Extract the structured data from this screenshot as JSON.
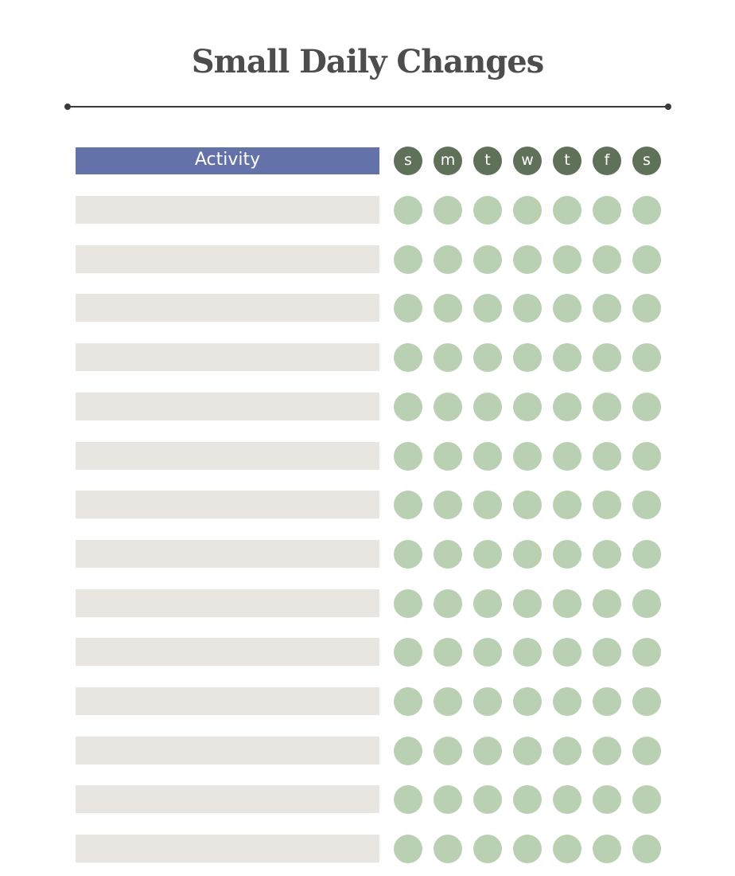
{
  "title": "Small Daily Changes",
  "header": {
    "activity_label": "Activity",
    "days": [
      "s",
      "m",
      "t",
      "w",
      "t",
      "f",
      "s"
    ]
  },
  "rows": [
    {
      "activity": "",
      "checks": [
        false,
        false,
        false,
        false,
        false,
        false,
        false
      ]
    },
    {
      "activity": "",
      "checks": [
        false,
        false,
        false,
        false,
        false,
        false,
        false
      ]
    },
    {
      "activity": "",
      "checks": [
        false,
        false,
        false,
        false,
        false,
        false,
        false
      ]
    },
    {
      "activity": "",
      "checks": [
        false,
        false,
        false,
        false,
        false,
        false,
        false
      ]
    },
    {
      "activity": "",
      "checks": [
        false,
        false,
        false,
        false,
        false,
        false,
        false
      ]
    },
    {
      "activity": "",
      "checks": [
        false,
        false,
        false,
        false,
        false,
        false,
        false
      ]
    },
    {
      "activity": "",
      "checks": [
        false,
        false,
        false,
        false,
        false,
        false,
        false
      ]
    },
    {
      "activity": "",
      "checks": [
        false,
        false,
        false,
        false,
        false,
        false,
        false
      ]
    },
    {
      "activity": "",
      "checks": [
        false,
        false,
        false,
        false,
        false,
        false,
        false
      ]
    },
    {
      "activity": "",
      "checks": [
        false,
        false,
        false,
        false,
        false,
        false,
        false
      ]
    },
    {
      "activity": "",
      "checks": [
        false,
        false,
        false,
        false,
        false,
        false,
        false
      ]
    },
    {
      "activity": "",
      "checks": [
        false,
        false,
        false,
        false,
        false,
        false,
        false
      ]
    },
    {
      "activity": "",
      "checks": [
        false,
        false,
        false,
        false,
        false,
        false,
        false
      ]
    },
    {
      "activity": "",
      "checks": [
        false,
        false,
        false,
        false,
        false,
        false,
        false
      ]
    }
  ],
  "colors": {
    "title": "#4d4d4d",
    "rule": "#3b3b3b",
    "header_bar": "#6372a8",
    "day_circle": "#5f7259",
    "row_bar": "#e9e6e1",
    "check_circle": "#b9d0b3"
  }
}
